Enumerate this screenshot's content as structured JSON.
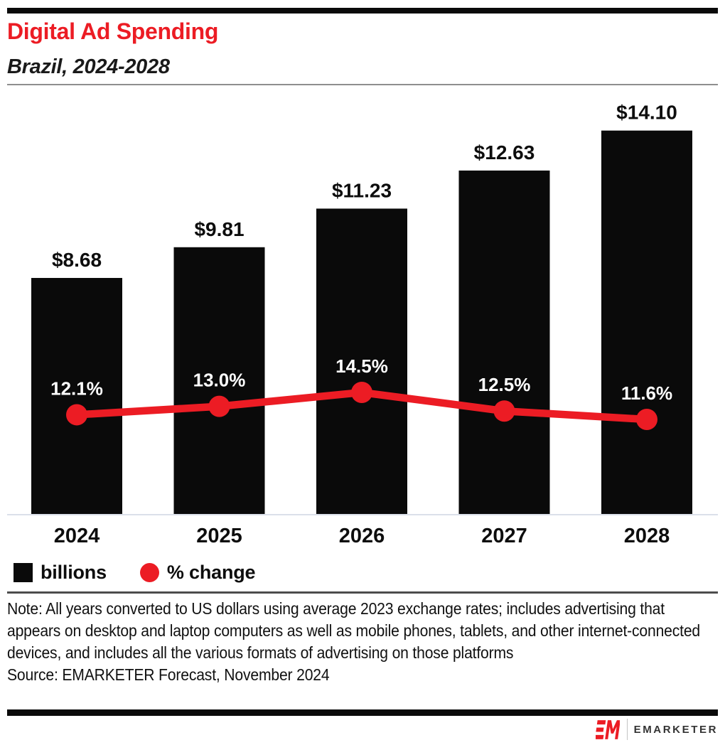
{
  "header": {
    "title": "Digital Ad Spending",
    "subtitle": "Brazil, 2024-2028"
  },
  "colors": {
    "red": "#ec1c24",
    "black": "#0a0a0a",
    "axis_line": "#cfd6e4",
    "bar_label": "#0d0d0d",
    "pct_label": "#ffffff"
  },
  "chart_data": {
    "type": "bar",
    "subtype": "combo-bar-line",
    "categories": [
      "2024",
      "2025",
      "2026",
      "2027",
      "2028"
    ],
    "series": [
      {
        "name": "billions",
        "type": "bar",
        "values": [
          8.68,
          9.81,
          11.23,
          12.63,
          14.1
        ],
        "labels": [
          "$8.68",
          "$9.81",
          "$11.23",
          "$12.63",
          "$14.10"
        ],
        "color": "#0a0a0a"
      },
      {
        "name": "% change",
        "type": "line",
        "values": [
          12.1,
          13.0,
          14.5,
          12.5,
          11.6
        ],
        "labels": [
          "12.1%",
          "13.0%",
          "14.5%",
          "12.5%",
          "11.6%"
        ],
        "color": "#ec1c24"
      }
    ],
    "title": "Digital Ad Spending",
    "subtitle": "Brazil, 2024-2028",
    "xlabel": "",
    "ylabel": "",
    "grid": false,
    "legend_position": "bottom-left",
    "legend": [
      {
        "label": "billions",
        "swatch": "square",
        "color": "#0a0a0a"
      },
      {
        "label": "% change",
        "swatch": "circle",
        "color": "#ec1c24"
      }
    ]
  },
  "note": {
    "note": "Note: All years converted to US dollars using average 2023 exchange rates; includes advertising that appears on desktop and laptop computers as well as mobile phones, tablets, and other internet-connected devices, and includes all the various formats of advertising on those platforms",
    "source": "Source: EMARKETER Forecast, November 2024"
  },
  "footer": {
    "brand": "EMARKETER"
  }
}
